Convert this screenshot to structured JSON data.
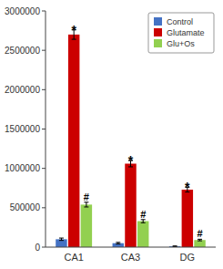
{
  "chart_data": {
    "type": "bar",
    "categories": [
      "CA1",
      "CA3",
      "DG"
    ],
    "series": [
      {
        "name": "Control",
        "color": "#4472C4",
        "values": [
          100000,
          50000,
          10000
        ],
        "errors": [
          15000,
          10000,
          5000
        ]
      },
      {
        "name": "Glutamate",
        "color": "#CC0000",
        "values": [
          2700000,
          1060000,
          730000
        ],
        "errors": [
          60000,
          40000,
          30000
        ]
      },
      {
        "name": "Glu+Os",
        "color": "#92D050",
        "values": [
          540000,
          330000,
          90000
        ],
        "errors": [
          30000,
          20000,
          10000
        ]
      }
    ],
    "ylim": [
      0,
      3000000
    ],
    "yticks": [
      0,
      500000,
      1000000,
      1500000,
      2000000,
      2500000,
      3000000
    ],
    "annotations": [
      {
        "text": "*",
        "category": "CA1",
        "series": "Glutamate"
      },
      {
        "text": "#",
        "category": "CA1",
        "series": "Glu+Os"
      },
      {
        "text": "*",
        "category": "CA3",
        "series": "Glutamate"
      },
      {
        "text": "#",
        "category": "CA3",
        "series": "Glu+Os"
      },
      {
        "text": "*",
        "category": "DG",
        "series": "Glutamate"
      },
      {
        "text": "#",
        "category": "DG",
        "series": "Glu+Os"
      }
    ],
    "legend": "upper right",
    "grid": false
  }
}
